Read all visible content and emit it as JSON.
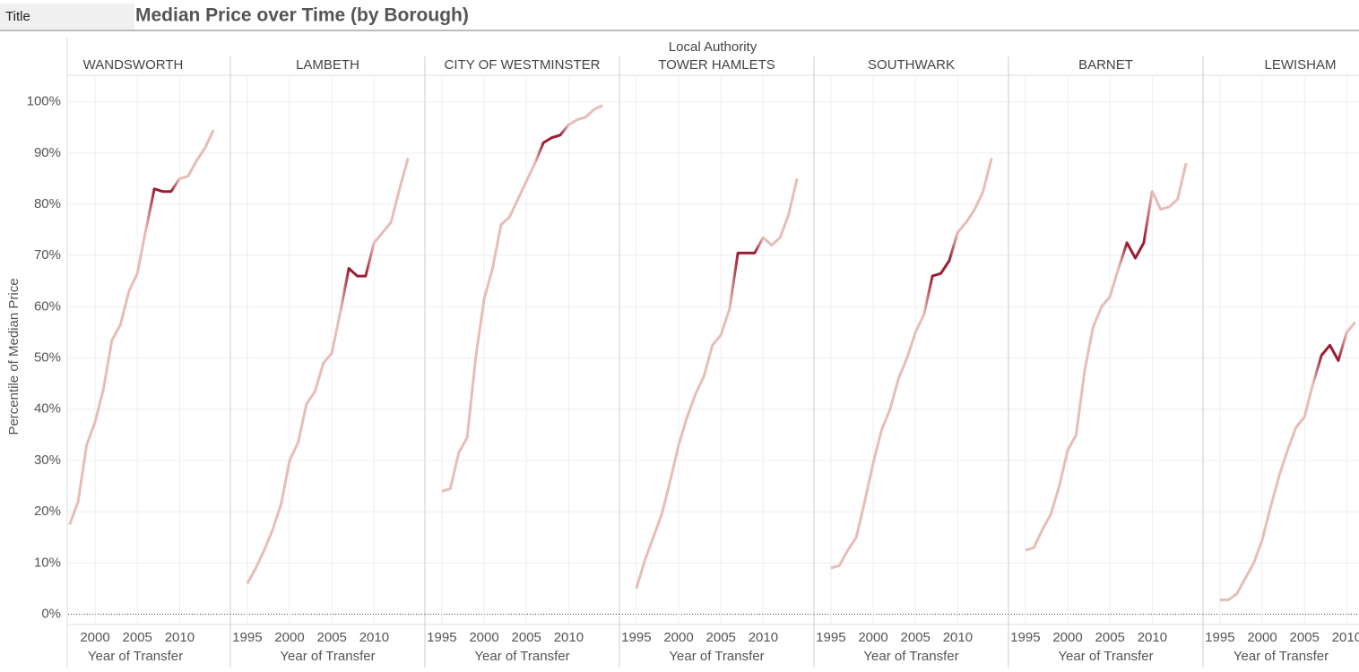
{
  "header": {
    "label": "Title"
  },
  "chart_data": {
    "type": "line",
    "title": "Median Price over Time (by Borough)",
    "column_header": "Local Authority",
    "ylabel": "Percentile of Median Price",
    "xlabel": "Year of Transfer",
    "xlim": [
      1993,
      2016
    ],
    "xticks": [
      1995,
      2000,
      2005,
      2010
    ],
    "ylim": [
      -2,
      105
    ],
    "yticks": [
      {
        "value": 0,
        "label": "0%"
      },
      {
        "value": 10,
        "label": "10%"
      },
      {
        "value": 20,
        "label": "20%"
      },
      {
        "value": 30,
        "label": "30%"
      },
      {
        "value": 40,
        "label": "40%"
      },
      {
        "value": 50,
        "label": "50%"
      },
      {
        "value": 60,
        "label": "60%"
      },
      {
        "value": 70,
        "label": "70%"
      },
      {
        "value": 80,
        "label": "80%"
      },
      {
        "value": 90,
        "label": "90%"
      },
      {
        "value": 100,
        "label": "100%"
      }
    ],
    "grid": true,
    "color": "#e8bcb7",
    "highlight_color": "#9b1b30",
    "highlight_x": [
      2007,
      2009
    ],
    "panels": [
      {
        "name": "WANDSWORTH",
        "x": [
          1997,
          1998,
          1999,
          2000,
          2001,
          2002,
          2003,
          2004,
          2005,
          2006,
          2007,
          2008,
          2009,
          2010,
          2011,
          2012,
          2013,
          2014
        ],
        "values": [
          17.5,
          22,
          33,
          37.5,
          44,
          53.5,
          56.5,
          63,
          66.5,
          75,
          83,
          82.5,
          82.5,
          85,
          85.5,
          88.5,
          91,
          94.5
        ]
      },
      {
        "name": "LAMBETH",
        "x": [
          1995,
          1996,
          1997,
          1998,
          1999,
          2000,
          2001,
          2002,
          2003,
          2004,
          2005,
          2006,
          2007,
          2008,
          2009,
          2010,
          2011,
          2012,
          2013,
          2014
        ],
        "values": [
          6,
          9,
          12.5,
          16.5,
          21.5,
          30,
          33.5,
          41,
          43.5,
          49,
          51,
          59,
          67.5,
          66,
          66,
          72.5,
          74.5,
          76.5,
          83,
          89
        ]
      },
      {
        "name": "CITY OF WESTMINSTER",
        "x": [
          1995,
          1996,
          1997,
          1998,
          1999,
          2000,
          2001,
          2002,
          2003,
          2004,
          2005,
          2006,
          2007,
          2008,
          2009,
          2010,
          2011,
          2012,
          2013,
          2014
        ],
        "values": [
          24,
          24.5,
          31.5,
          34.5,
          50,
          61.5,
          67.5,
          76,
          77.5,
          81,
          84.5,
          88,
          92,
          93,
          93.5,
          95.5,
          96.5,
          97,
          98.5,
          99.3
        ]
      },
      {
        "name": "TOWER HAMLETS",
        "x": [
          1995,
          1996,
          1997,
          1998,
          1999,
          2000,
          2001,
          2002,
          2003,
          2004,
          2005,
          2006,
          2007,
          2008,
          2009,
          2010,
          2011,
          2012,
          2013,
          2014
        ],
        "values": [
          5,
          10.5,
          15,
          19.5,
          26,
          33,
          38.5,
          43,
          46.5,
          52.5,
          54.5,
          59.5,
          70.5,
          70.5,
          70.5,
          73.5,
          72,
          73.5,
          78,
          85
        ]
      },
      {
        "name": "SOUTHWARK",
        "x": [
          1995,
          1996,
          1997,
          1998,
          1999,
          2000,
          2001,
          2002,
          2003,
          2004,
          2005,
          2006,
          2007,
          2008,
          2009,
          2010,
          2011,
          2012,
          2013,
          2014
        ],
        "values": [
          9,
          9.5,
          12.5,
          15,
          22,
          29.5,
          36,
          40,
          46,
          50,
          55,
          58.5,
          66,
          66.5,
          69,
          74.5,
          76.5,
          79,
          82.5,
          89
        ]
      },
      {
        "name": "BARNET",
        "x": [
          1995,
          1996,
          1997,
          1998,
          1999,
          2000,
          2001,
          2002,
          2003,
          2004,
          2005,
          2006,
          2007,
          2008,
          2009,
          2010,
          2011,
          2012,
          2013,
          2014
        ],
        "values": [
          12.5,
          13,
          16.5,
          19.5,
          25,
          32,
          35,
          47.5,
          56,
          60,
          62,
          67.5,
          72.5,
          69.5,
          72.5,
          82.5,
          79,
          79.5,
          81,
          88
        ]
      },
      {
        "name": "LEWISHAM",
        "x": [
          1995,
          1996,
          1997,
          1998,
          1999,
          2000,
          2001,
          2002,
          2003,
          2004,
          2005,
          2006,
          2007,
          2008,
          2009,
          2010,
          2011
        ],
        "values": [
          2.8,
          2.8,
          4,
          7,
          10,
          14.5,
          21,
          27,
          32,
          36.5,
          38.5,
          45,
          50.5,
          52.5,
          49.5,
          55,
          57
        ]
      }
    ]
  }
}
